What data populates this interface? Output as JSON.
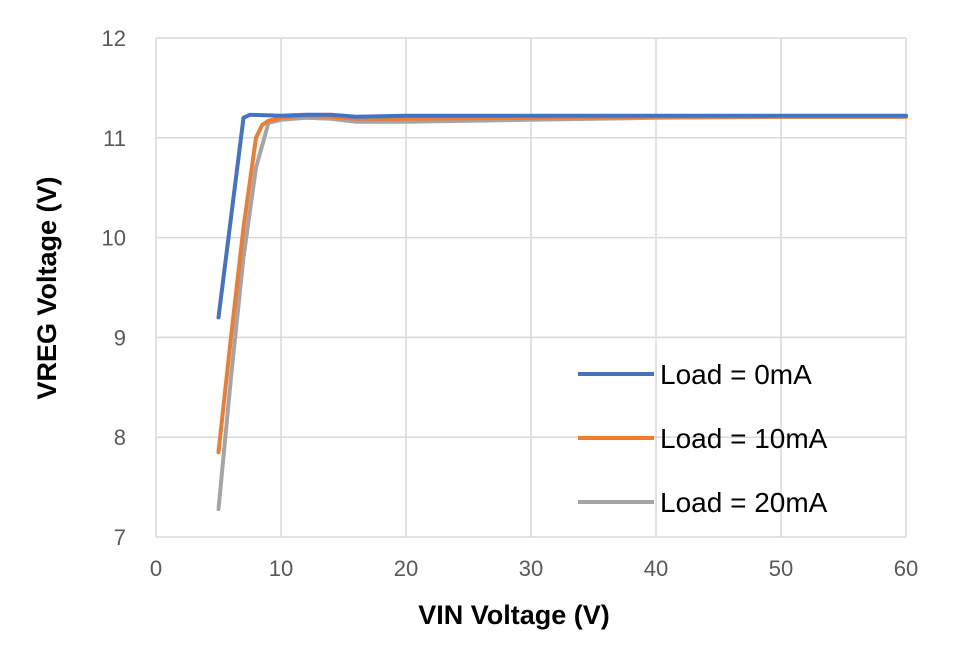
{
  "chart_data": {
    "type": "line",
    "title": "",
    "xlabel": "VIN Voltage (V)",
    "ylabel": "VREG Voltage (V)",
    "xlim": [
      0,
      60
    ],
    "ylim": [
      7,
      12
    ],
    "xticks": [
      "0",
      "10",
      "20",
      "30",
      "40",
      "50",
      "60"
    ],
    "yticks": [
      "7",
      "8",
      "9",
      "10",
      "11",
      "12"
    ],
    "grid": true,
    "legend_position": "bottom-right",
    "series": [
      {
        "name": "Load = 0mA",
        "color": "#4472C4",
        "x": [
          5,
          6,
          7,
          7.5,
          10,
          12,
          14,
          16,
          20,
          30,
          40,
          50,
          60
        ],
        "y": [
          9.2,
          10.2,
          11.2,
          11.23,
          11.22,
          11.23,
          11.23,
          11.21,
          11.22,
          11.22,
          11.22,
          11.22,
          11.22
        ]
      },
      {
        "name": "Load = 10mA",
        "color": "#ED7D31",
        "x": [
          5,
          6,
          7,
          8,
          8.5,
          9,
          10,
          12,
          14,
          16,
          20,
          30,
          40,
          50,
          60
        ],
        "y": [
          7.85,
          9.0,
          10.1,
          11.0,
          11.13,
          11.17,
          11.2,
          11.22,
          11.21,
          11.19,
          11.19,
          11.2,
          11.21,
          11.21,
          11.21
        ]
      },
      {
        "name": "Load = 20mA",
        "color": "#A5A5A5",
        "x": [
          5,
          6,
          7,
          8,
          9,
          10,
          12,
          14,
          16,
          20,
          30,
          40,
          50,
          60
        ],
        "y": [
          7.28,
          8.6,
          9.8,
          10.7,
          11.15,
          11.18,
          11.2,
          11.19,
          11.16,
          11.16,
          11.18,
          11.2,
          11.21,
          11.21
        ]
      }
    ]
  }
}
